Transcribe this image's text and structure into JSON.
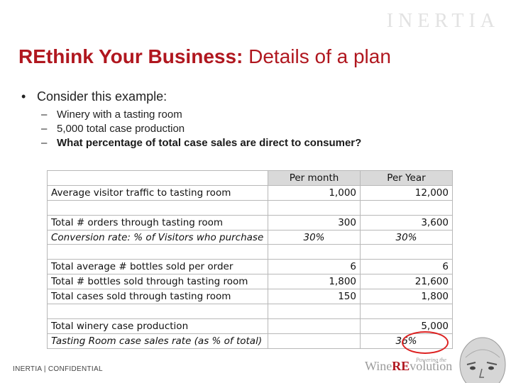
{
  "watermark": "INERTIA",
  "title": {
    "bold": "REthink Your Business:",
    "rest": " Details of a plan"
  },
  "bullet": "Consider this example:",
  "subs": [
    "Winery with a tasting room",
    "5,000 total case production",
    "What percentage of total case sales are direct to consumer?"
  ],
  "table": {
    "headers": {
      "month": "Per month",
      "year": "Per Year"
    },
    "rows": {
      "traffic": {
        "label": "Average visitor traffic to tasting room",
        "month": "1,000",
        "year": "12,000"
      },
      "orders": {
        "label": "Total # orders through tasting room",
        "month": "300",
        "year": "3,600"
      },
      "conversion": {
        "label": "Conversion rate: % of Visitors who purchase",
        "month": "30%",
        "year": "30%"
      },
      "avg_bottles": {
        "label": "Total average # bottles sold per order",
        "month": "6",
        "year": "6"
      },
      "bottles": {
        "label": "Total # bottles sold through tasting room",
        "month": "1,800",
        "year": "21,600"
      },
      "cases": {
        "label": "Total cases sold through tasting room",
        "month": "150",
        "year": "1,800"
      },
      "production": {
        "label": "Total winery case production",
        "month": "",
        "year": "5,000"
      },
      "rate": {
        "label": "Tasting Room case sales rate (as % of total)",
        "month": "",
        "year": "36%"
      }
    }
  },
  "footer": "INERTIA | CONFIDENTIAL",
  "brand": {
    "pre": "Wine",
    "re": "RE",
    "post": "volution",
    "tag": "Powering the"
  },
  "colors": {
    "accent": "#b0171f",
    "highlight": "#d22222",
    "header_fill": "#d9d9d9"
  }
}
